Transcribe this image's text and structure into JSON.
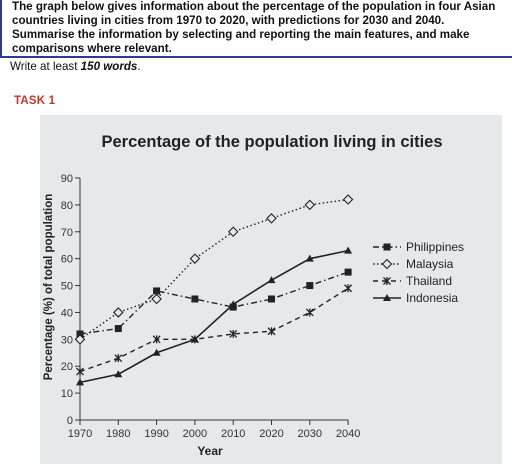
{
  "prompt": {
    "line1": "The graph below gives information about the percentage of the population in four Asian",
    "line2": "countries living in cities from 1970 to 2020, with predictions for 2030 and 2040.",
    "line3": "Summarise the information by selecting and reporting the main features, and make",
    "line4": "comparisons where relevant.",
    "word_requirement_prefix": "Write at least ",
    "word_requirement_bold": "150 words",
    "word_requirement_suffix": "."
  },
  "task_label": "TASK 1",
  "chart_data": {
    "type": "line",
    "title": "Percentage of the population living in cities",
    "xlabel": "Year",
    "ylabel": "Percentage (%) of total population",
    "x": [
      1970,
      1980,
      1990,
      2000,
      2010,
      2020,
      2030,
      2040
    ],
    "ylim": [
      0,
      90
    ],
    "yticks": [
      0,
      10,
      20,
      30,
      40,
      50,
      60,
      70,
      80,
      90
    ],
    "grid": false,
    "legend_position": "right",
    "series": [
      {
        "name": "Philippines",
        "values": [
          32,
          34,
          48,
          45,
          42,
          45,
          50,
          55
        ],
        "marker": "square",
        "dash": "dash-dot",
        "color": "#222222"
      },
      {
        "name": "Malaysia",
        "values": [
          30,
          40,
          45,
          60,
          70,
          75,
          80,
          82
        ],
        "marker": "diamond",
        "dash": "dotted",
        "color": "#222222"
      },
      {
        "name": "Thailand",
        "values": [
          18,
          23,
          30,
          30,
          32,
          33,
          40,
          49
        ],
        "marker": "star",
        "dash": "dashed",
        "color": "#222222"
      },
      {
        "name": "Indonesia",
        "values": [
          14,
          17,
          25,
          30,
          43,
          52,
          60,
          63
        ],
        "marker": "triangle",
        "dash": "solid",
        "color": "#222222"
      }
    ]
  }
}
